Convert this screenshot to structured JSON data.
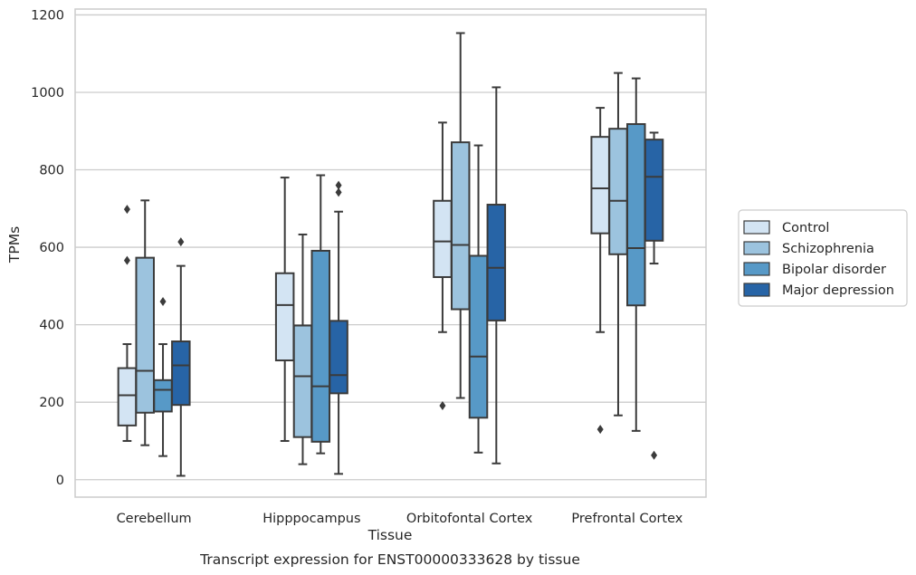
{
  "chart_data": {
    "type": "box",
    "title": "",
    "caption": "Transcript expression for ENST00000333628 by tissue",
    "xlabel": "Tissue",
    "ylabel": "TPMs",
    "ylim": [
      -45,
      1215
    ],
    "yticks": [
      0,
      200,
      400,
      600,
      800,
      1000,
      1200
    ],
    "grid": "horizontal",
    "legend_position": "right",
    "categories": [
      "Cerebellum",
      "Hipppocampus",
      "Orbitofontal Cortex",
      "Prefrontal Cortex"
    ],
    "series": [
      {
        "name": "Control",
        "color": "#d3e4f3",
        "boxes": [
          {
            "whisker_low": 100,
            "q1": 140,
            "median": 218,
            "q3": 288,
            "whisker_high": 350,
            "outliers": [
              566,
              698
            ]
          },
          {
            "whisker_low": 100,
            "q1": 308,
            "median": 451,
            "q3": 533,
            "whisker_high": 780,
            "outliers": []
          },
          {
            "whisker_low": 381,
            "q1": 523,
            "median": 615,
            "q3": 720,
            "whisker_high": 922,
            "outliers": [
              191
            ]
          },
          {
            "whisker_low": 381,
            "q1": 636,
            "median": 752,
            "q3": 885,
            "whisker_high": 960,
            "outliers": [
              130
            ]
          }
        ]
      },
      {
        "name": "Schizophrenia",
        "color": "#9cc3de",
        "boxes": [
          {
            "whisker_low": 89,
            "q1": 173,
            "median": 281,
            "q3": 573,
            "whisker_high": 721,
            "outliers": []
          },
          {
            "whisker_low": 40,
            "q1": 110,
            "median": 267,
            "q3": 398,
            "whisker_high": 633,
            "outliers": []
          },
          {
            "whisker_low": 211,
            "q1": 440,
            "median": 606,
            "q3": 871,
            "whisker_high": 1153,
            "outliers": []
          },
          {
            "whisker_low": 166,
            "q1": 582,
            "median": 720,
            "q3": 906,
            "whisker_high": 1050,
            "outliers": []
          }
        ]
      },
      {
        "name": "Bipolar disorder",
        "color": "#5799c7",
        "boxes": [
          {
            "whisker_low": 61,
            "q1": 176,
            "median": 232,
            "q3": 257,
            "whisker_high": 350,
            "outliers": [
              460
            ]
          },
          {
            "whisker_low": 68,
            "q1": 98,
            "median": 241,
            "q3": 591,
            "whisker_high": 786,
            "outliers": []
          },
          {
            "whisker_low": 70,
            "q1": 160,
            "median": 318,
            "q3": 578,
            "whisker_high": 863,
            "outliers": []
          },
          {
            "whisker_low": 126,
            "q1": 450,
            "median": 598,
            "q3": 918,
            "whisker_high": 1036,
            "outliers": []
          }
        ]
      },
      {
        "name": "Major depression",
        "color": "#2764a6",
        "boxes": [
          {
            "whisker_low": 10,
            "q1": 193,
            "median": 295,
            "q3": 357,
            "whisker_high": 552,
            "outliers": [
              614
            ]
          },
          {
            "whisker_low": 15,
            "q1": 223,
            "median": 270,
            "q3": 410,
            "whisker_high": 692,
            "outliers": [
              742,
              760
            ]
          },
          {
            "whisker_low": 42,
            "q1": 411,
            "median": 547,
            "q3": 710,
            "whisker_high": 1013,
            "outliers": []
          },
          {
            "whisker_low": 558,
            "q1": 617,
            "median": 782,
            "q3": 878,
            "whisker_high": 896,
            "outliers": [
              63
            ]
          }
        ]
      }
    ]
  }
}
